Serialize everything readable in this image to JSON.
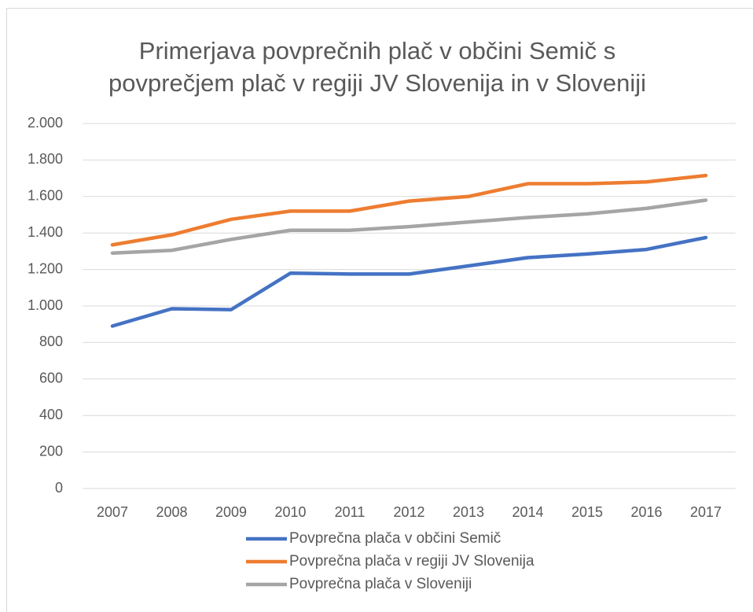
{
  "chart_data": {
    "type": "line",
    "title": "Primerjava povprečnih plač v občini Semič s povprečjem plač v regiji JV Slovenija in v Sloveniji",
    "categories": [
      "2007",
      "2008",
      "2009",
      "2010",
      "2011",
      "2012",
      "2013",
      "2014",
      "2015",
      "2016",
      "2017"
    ],
    "series": [
      {
        "name": "Povprečna plača v občini Semič",
        "color": "#4472c4",
        "values": [
          890,
          985,
          980,
          1180,
          1175,
          1175,
          1220,
          1265,
          1285,
          1310,
          1375
        ]
      },
      {
        "name": "Povprečna plača v regiji JV Slovenija",
        "color": "#ed7d31",
        "values": [
          1335,
          1390,
          1475,
          1520,
          1520,
          1575,
          1600,
          1670,
          1670,
          1680,
          1715
        ]
      },
      {
        "name": "Povprečna plača v Sloveniji",
        "color": "#a5a5a5",
        "values": [
          1290,
          1305,
          1365,
          1415,
          1415,
          1435,
          1460,
          1485,
          1505,
          1535,
          1580
        ]
      }
    ],
    "ylim": [
      0,
      2000
    ],
    "yticks": [
      0,
      200,
      400,
      600,
      800,
      {
        "value": 1000,
        "label": "1.000"
      },
      {
        "value": 1200,
        "label": "1.200"
      },
      {
        "value": 1400,
        "label": "1.400"
      },
      {
        "value": 1600,
        "label": "1.600"
      },
      {
        "value": 1800,
        "label": "1.800"
      },
      {
        "value": 2000,
        "label": "2.000"
      }
    ],
    "grid": true,
    "legend": "bottom"
  }
}
